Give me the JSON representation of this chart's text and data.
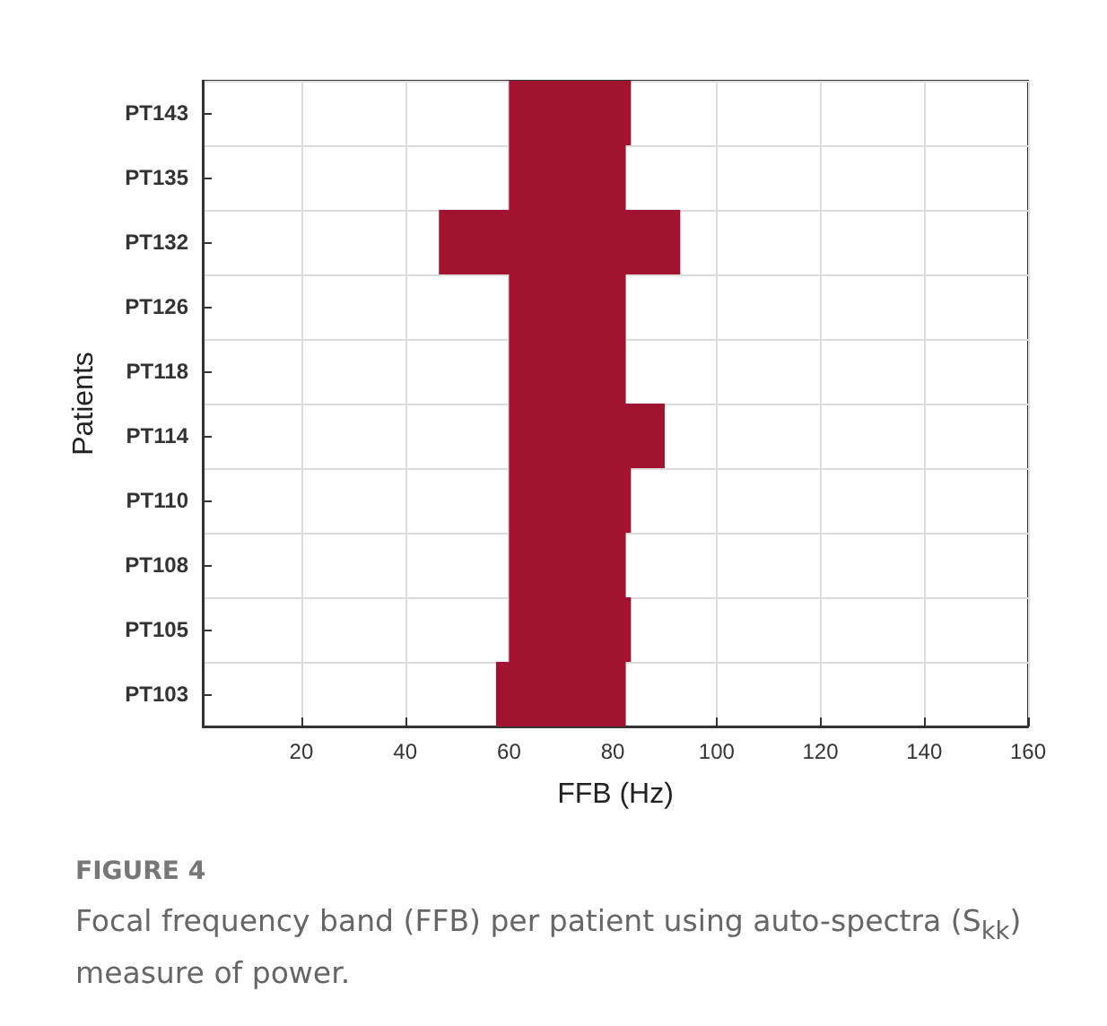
{
  "chart_data": {
    "type": "bar",
    "orientation": "horizontal",
    "xlabel": "FFB (Hz)",
    "ylabel": "Patients",
    "categories": [
      "PT143",
      "PT135",
      "PT132",
      "PT126",
      "PT118",
      "PT114",
      "PT110",
      "PT108",
      "PT105",
      "PT103"
    ],
    "base": [
      60,
      60,
      46.5,
      60,
      60,
      60,
      60,
      60,
      60,
      57.5
    ],
    "values": [
      23.5,
      22.5,
      46.5,
      22.5,
      22.5,
      30,
      23.5,
      22.5,
      23.5,
      25
    ],
    "color": "#a2132f",
    "xlim": [
      1,
      160
    ],
    "xticks": [
      20,
      40,
      60,
      80,
      100,
      120,
      140,
      160
    ],
    "grid": true,
    "annotations": [
      "FIGURE 4",
      "Focal frequency band (FFB) per patient using auto-spectra (S$_{kk}$) measure of power."
    ]
  }
}
